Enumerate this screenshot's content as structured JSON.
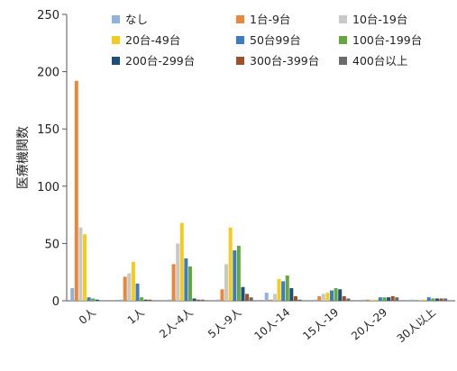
{
  "chart_data": {
    "type": "bar",
    "title": "",
    "xlabel": "",
    "ylabel": "医療機関数",
    "ylim": [
      0,
      250
    ],
    "yticks": [
      0,
      50,
      100,
      150,
      200,
      250
    ],
    "grid": false,
    "legend_position": "top-right",
    "categories": [
      "0人",
      "1人",
      "2人-4人",
      "5人-9人",
      "10人-14",
      "15人-19",
      "20人-29",
      "30人以上"
    ],
    "series": [
      {
        "name": "なし",
        "color": "#8fb3d9",
        "values": [
          11,
          1,
          1,
          1,
          7,
          1,
          1,
          1
        ]
      },
      {
        "name": "1台-9台",
        "color": "#e8883a",
        "values": [
          192,
          21,
          32,
          10,
          1,
          4,
          1,
          0
        ]
      },
      {
        "name": "10台-19台",
        "color": "#c8c8c8",
        "values": [
          64,
          24,
          50,
          32,
          6,
          6,
          1,
          1
        ]
      },
      {
        "name": "20台-49台",
        "color": "#f2cc1e",
        "values": [
          58,
          34,
          68,
          64,
          19,
          7,
          1,
          1
        ]
      },
      {
        "name": "50台99台",
        "color": "#3d7cc0",
        "values": [
          3,
          15,
          37,
          44,
          17,
          9,
          3,
          3
        ]
      },
      {
        "name": "100台-199台",
        "color": "#63a83e",
        "values": [
          2,
          3,
          30,
          48,
          22,
          11,
          3,
          2
        ]
      },
      {
        "name": "200台-299台",
        "color": "#1f4e7a",
        "values": [
          1,
          1,
          2,
          12,
          11,
          10,
          3,
          2
        ]
      },
      {
        "name": "300台-399台",
        "color": "#9c5228",
        "values": [
          0,
          1,
          1,
          6,
          4,
          4,
          4,
          2
        ]
      },
      {
        "name": "400台以上",
        "color": "#6b6b6b",
        "values": [
          0,
          0,
          1,
          3,
          1,
          2,
          3,
          2
        ]
      }
    ]
  }
}
